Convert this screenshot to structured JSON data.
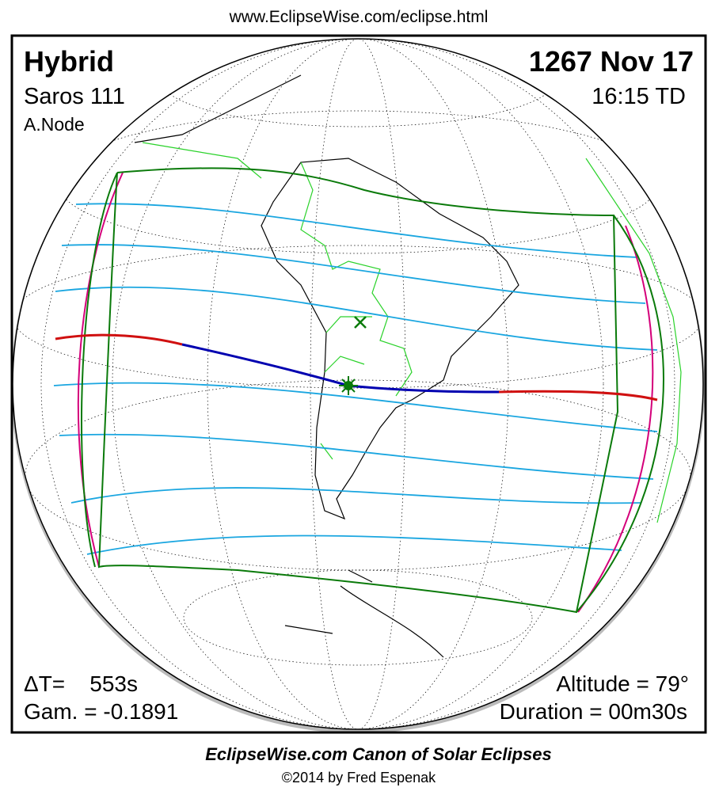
{
  "header": {
    "url": "www.EclipseWise.com/eclipse.html"
  },
  "labels": {
    "type": "Hybrid",
    "saros": "Saros 111",
    "node": "A.Node",
    "date": "1267 Nov 17",
    "time": "16:15 TD",
    "delta_t": "ΔT=    553s",
    "gamma": "Gam. = -0.1891",
    "altitude": "Altitude = 79°",
    "duration": "Duration = 00m30s"
  },
  "footer": {
    "title": "EclipseWise.com Canon of Solar Eclipses",
    "copyright": "©2014 by Fred Espenak"
  }
}
